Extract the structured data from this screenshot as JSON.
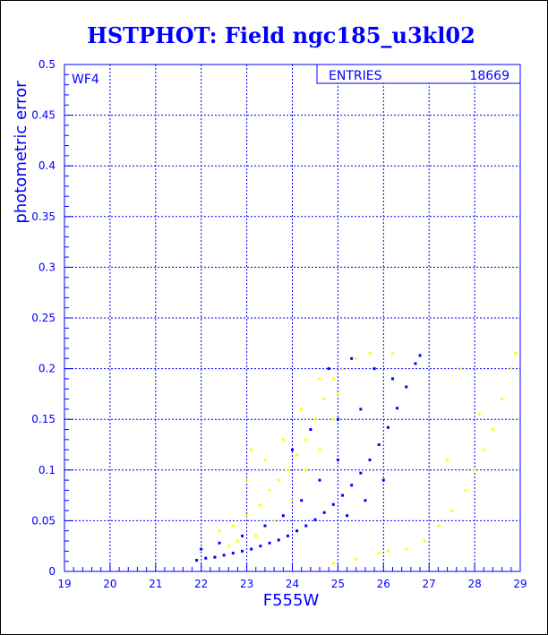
{
  "chart_data": {
    "type": "scatter",
    "title": "HSTPHOT: Field ngc185_u3kl02",
    "panel_label": "WF4",
    "stats": {
      "label": "ENTRIES",
      "value": "18669"
    },
    "xlabel": "F555W",
    "ylabel": "photometric error",
    "xlim": [
      19,
      29
    ],
    "ylim": [
      0,
      0.5
    ],
    "xticks": [
      "19",
      "20",
      "21",
      "22",
      "23",
      "24",
      "25",
      "26",
      "27",
      "28",
      "29"
    ],
    "yticks": [
      "0",
      "0.05",
      "0.1",
      "0.15",
      "0.2",
      "0.25",
      "0.3",
      "0.35",
      "0.4",
      "0.45",
      "0.5"
    ],
    "grid": true,
    "colors": {
      "accent": "#0000ff",
      "blue_points": "#0000ff",
      "yellow_points": "#ffff00",
      "background": "#ffffff"
    },
    "series": [
      {
        "color": "#0000ff",
        "points": [
          [
            21.9,
            0.011
          ],
          [
            22.1,
            0.013
          ],
          [
            22.3,
            0.014
          ],
          [
            22.5,
            0.016
          ],
          [
            22.7,
            0.018
          ],
          [
            22.9,
            0.02
          ],
          [
            23.1,
            0.022
          ],
          [
            23.3,
            0.025
          ],
          [
            23.5,
            0.028
          ],
          [
            23.7,
            0.031
          ],
          [
            23.9,
            0.035
          ],
          [
            24.1,
            0.04
          ],
          [
            24.3,
            0.045
          ],
          [
            24.5,
            0.051
          ],
          [
            24.7,
            0.058
          ],
          [
            24.9,
            0.066
          ],
          [
            25.1,
            0.075
          ],
          [
            25.3,
            0.085
          ],
          [
            25.5,
            0.097
          ],
          [
            25.7,
            0.11
          ],
          [
            25.9,
            0.125
          ],
          [
            26.1,
            0.142
          ],
          [
            26.3,
            0.161
          ],
          [
            26.5,
            0.182
          ],
          [
            26.7,
            0.205
          ],
          [
            24.8,
            0.2
          ],
          [
            25.3,
            0.21
          ],
          [
            25.8,
            0.2
          ],
          [
            26.2,
            0.19
          ],
          [
            25.0,
            0.15
          ],
          [
            25.5,
            0.16
          ],
          [
            25.0,
            0.11
          ],
          [
            24.6,
            0.09
          ],
          [
            24.2,
            0.07
          ],
          [
            23.8,
            0.055
          ],
          [
            23.4,
            0.045
          ],
          [
            22.9,
            0.035
          ],
          [
            22.4,
            0.028
          ],
          [
            22.0,
            0.022
          ],
          [
            24.0,
            0.12
          ],
          [
            24.4,
            0.14
          ],
          [
            26.8,
            0.213
          ],
          [
            26.0,
            0.09
          ],
          [
            25.6,
            0.07
          ],
          [
            25.2,
            0.055
          ]
        ]
      },
      {
        "color": "#ffff00",
        "points": [
          [
            22.4,
            0.04
          ],
          [
            22.7,
            0.045
          ],
          [
            23.0,
            0.055
          ],
          [
            23.3,
            0.065
          ],
          [
            23.5,
            0.08
          ],
          [
            23.7,
            0.09
          ],
          [
            23.9,
            0.1
          ],
          [
            24.1,
            0.115
          ],
          [
            24.3,
            0.13
          ],
          [
            24.5,
            0.15
          ],
          [
            24.7,
            0.17
          ],
          [
            24.9,
            0.19
          ],
          [
            25.1,
            0.2
          ],
          [
            25.4,
            0.21
          ],
          [
            25.7,
            0.215
          ],
          [
            26.2,
            0.215
          ],
          [
            23.0,
            0.09
          ],
          [
            23.4,
            0.11
          ],
          [
            23.8,
            0.13
          ],
          [
            24.2,
            0.16
          ],
          [
            24.6,
            0.19
          ],
          [
            25.0,
            0.175
          ],
          [
            24.0,
            0.07
          ],
          [
            23.6,
            0.05
          ],
          [
            23.2,
            0.035
          ],
          [
            22.8,
            0.03
          ],
          [
            24.3,
            0.1
          ],
          [
            24.6,
            0.12
          ],
          [
            24.9,
            0.15
          ],
          [
            22.6,
            0.025
          ],
          [
            23.1,
            0.12
          ],
          [
            24.4,
            0.003
          ],
          [
            24.9,
            0.008
          ],
          [
            25.4,
            0.012
          ],
          [
            25.9,
            0.018
          ],
          [
            26.1,
            0.02
          ],
          [
            26.5,
            0.022
          ],
          [
            26.9,
            0.03
          ],
          [
            27.2,
            0.045
          ],
          [
            27.5,
            0.06
          ],
          [
            27.8,
            0.08
          ],
          [
            28.0,
            0.1
          ],
          [
            28.2,
            0.12
          ],
          [
            28.4,
            0.14
          ],
          [
            28.6,
            0.17
          ],
          [
            28.8,
            0.2
          ],
          [
            28.9,
            0.215
          ],
          [
            27.7,
            0.2
          ],
          [
            28.1,
            0.155
          ],
          [
            27.4,
            0.11
          ]
        ]
      }
    ]
  }
}
